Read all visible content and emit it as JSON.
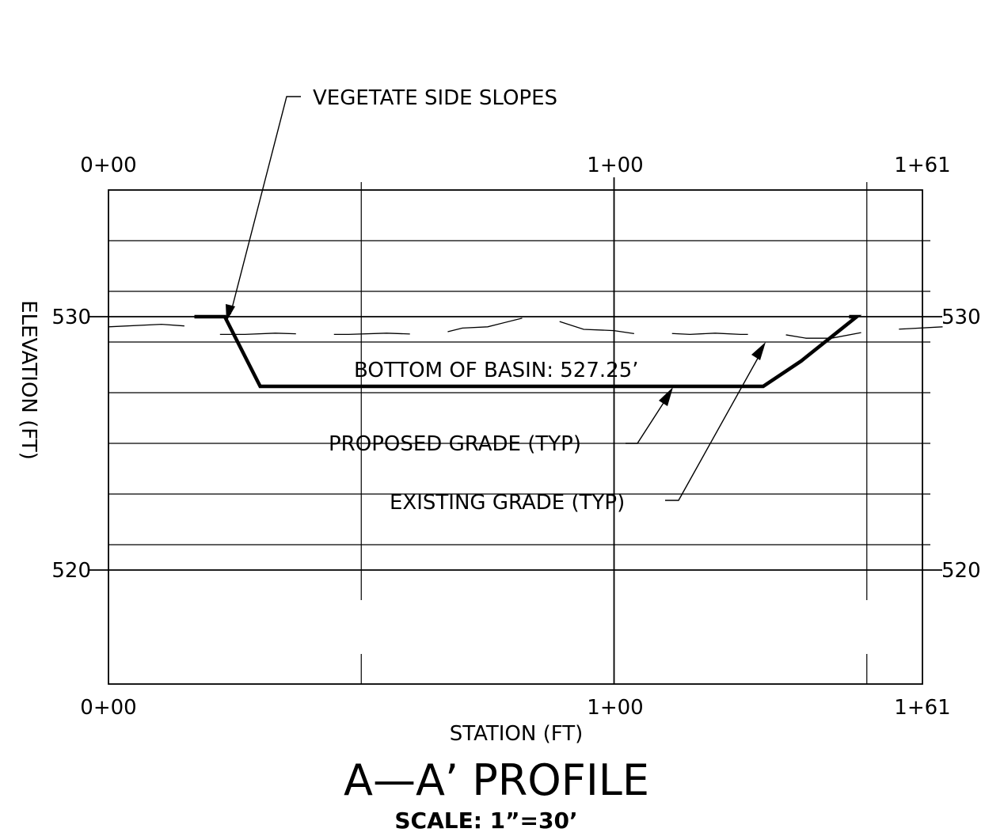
{
  "title": "A—A’ PROFILE",
  "scale_note": "SCALE:  1”=30’",
  "axes": {
    "x_label": "STATION (FT)",
    "y_label": "ELEVATION (FT)",
    "x_ticks_top": [
      "0+00",
      "1+00",
      "1+61"
    ],
    "x_ticks_bottom": [
      "0+00",
      "1+00",
      "1+61"
    ],
    "y_ticks_left": [
      "530",
      "520"
    ],
    "y_ticks_right": [
      "530",
      "520"
    ]
  },
  "annotations": {
    "side_slopes": "VEGETATE SIDE SLOPES",
    "basin_bottom": "BOTTOM OF BASIN: 527.25’",
    "proposed_grade": "PROPOSED GRADE (TYP)",
    "existing_grade": "EXISTING GRADE (TYP)"
  },
  "chart_data": {
    "type": "line",
    "x_unit": "ft",
    "y_unit": "ft",
    "xlim": [
      0,
      161
    ],
    "ylim": [
      515.5,
      534
    ],
    "series": [
      {
        "role": "proposed",
        "x": [
          17,
          23,
          30,
          129.5,
          137,
          148,
          146.5
        ],
        "y": [
          530,
          530,
          527.25,
          527.25,
          528.25,
          530,
          530
        ]
      },
      {
        "role": "existing",
        "x": [
          0,
          10.5,
          17.5,
          19.5,
          21,
          27,
          33,
          41,
          47.5,
          55,
          62,
          66,
          70,
          75,
          82,
          87,
          94,
          100,
          105,
          110,
          115,
          120,
          125,
          129.5,
          133.5,
          138,
          143,
          151,
          165
        ],
        "y": [
          529.6,
          529.7,
          529.6,
          529.55,
          529.3,
          529.3,
          529.35,
          529.3,
          529.3,
          529.35,
          529.3,
          529.35,
          529.55,
          529.6,
          529.95,
          529.95,
          529.5,
          529.45,
          529.3,
          529.35,
          529.3,
          529.35,
          529.3,
          529.3,
          529.3,
          529.15,
          529.15,
          529.45,
          529.6
        ]
      }
    ],
    "elevation_grid": [
      533,
      531,
      530,
      529,
      527,
      525,
      523,
      521,
      520
    ],
    "station_grid": [
      50,
      100,
      150
    ]
  }
}
